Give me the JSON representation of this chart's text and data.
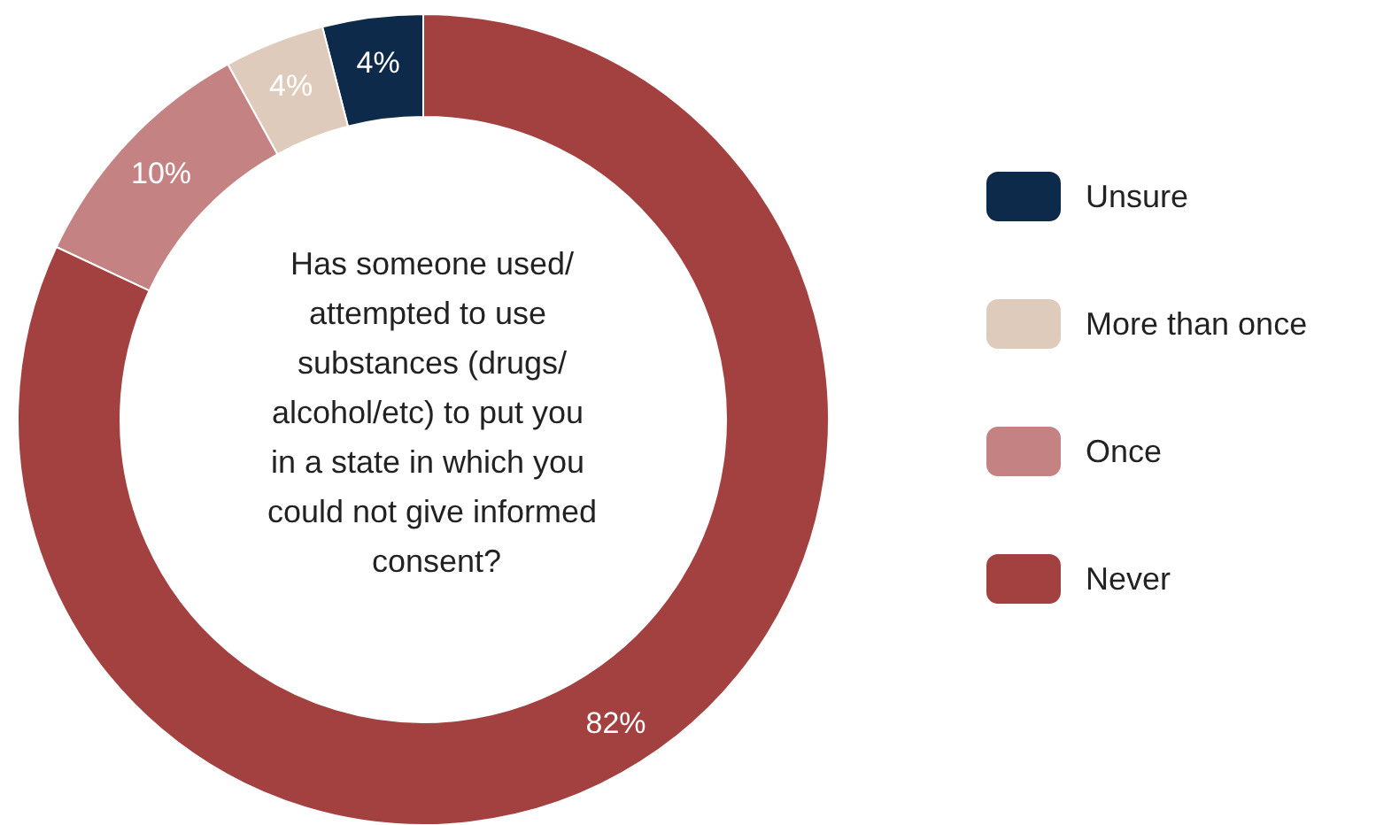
{
  "chart_data": {
    "type": "donut",
    "title": "Has someone used/attempted to use substances (drugs/alcohol/etc) to put you in a state in which you could not give informed consent?",
    "categories": [
      "Unsure",
      "More than once",
      "Once",
      "Never"
    ],
    "values": [
      4,
      4,
      10,
      82
    ],
    "colors": [
      "#0d2a4a",
      "#dfcbbb",
      "#c48282",
      "#a34040"
    ],
    "value_labels": [
      "4%",
      "4%",
      "10%",
      "82%"
    ],
    "legend": "right"
  }
}
